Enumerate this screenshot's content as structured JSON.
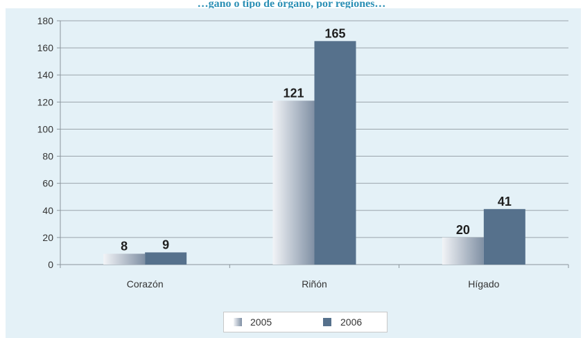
{
  "title": "…gano o tipo de órgano, por regiones…",
  "chart_data": {
    "type": "bar",
    "categories": [
      "Corazón",
      "Riñón",
      "Hígado"
    ],
    "series": [
      {
        "name": "2005",
        "values": [
          8,
          121,
          20
        ]
      },
      {
        "name": "2006",
        "values": [
          9,
          165,
          41
        ]
      }
    ],
    "ylim": [
      0,
      180
    ],
    "yticks": [
      0,
      20,
      40,
      60,
      80,
      100,
      120,
      140,
      160,
      180
    ],
    "grid": true,
    "legend_position": "bottom",
    "colors": {
      "2005_light": "#f2f4f7",
      "2005_dark": "#8090a4",
      "2006": "#56718c"
    }
  }
}
